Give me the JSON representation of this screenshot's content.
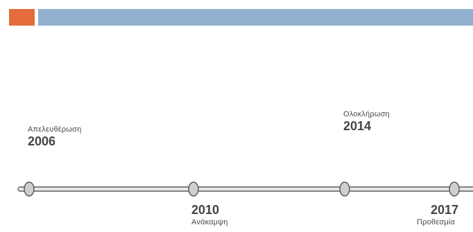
{
  "header": {
    "accent_color": "#e46c3c",
    "band_color": "#92b1d0"
  },
  "timeline": {
    "line_color": "#5a5a5a",
    "node_fill": "#cfcfcf",
    "node_stroke": "#555555",
    "events": [
      {
        "year": "2006",
        "label": "Απελευθέρωση",
        "placement": "above"
      },
      {
        "year": "2010",
        "label": "Ανάκαμψη",
        "placement": "below"
      },
      {
        "year": "2014",
        "label": "Ολοκλήρωση",
        "placement": "above"
      },
      {
        "year": "2017",
        "label": "Προθεσμία",
        "placement": "below"
      }
    ]
  }
}
